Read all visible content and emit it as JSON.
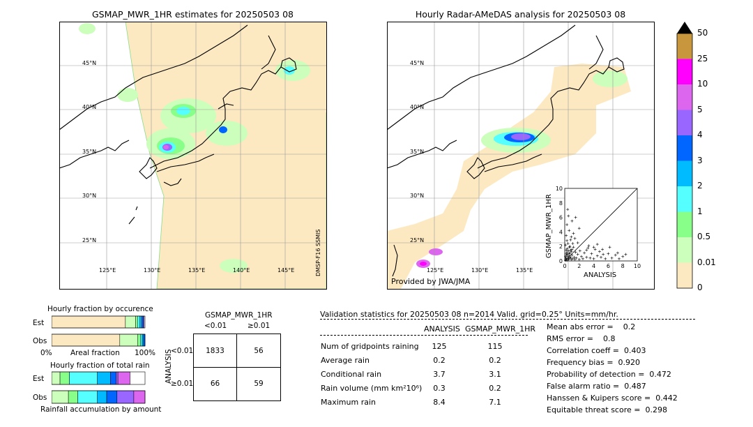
{
  "map_left": {
    "title": "GSMAP_MWR_1HR estimates for 20250503 08",
    "lat_labels": [
      "45°N",
      "40°N",
      "35°N",
      "30°N",
      "25°N"
    ],
    "lon_labels": [
      "125°E",
      "130°E",
      "135°E",
      "140°E",
      "145°E"
    ],
    "side_note": "DMSP-F16 SSMIS"
  },
  "map_right": {
    "title": "Hourly Radar-AMeDAS analysis for 20250503 08",
    "lat_labels": [
      "45°N",
      "40°N",
      "35°N",
      "30°N",
      "25°N"
    ],
    "lon_labels": [
      "125°E",
      "130°E",
      "135°E"
    ],
    "credit": "Provided by JWA/JMA"
  },
  "colorbar": {
    "labels": [
      "50",
      "25",
      "10",
      "5",
      "4",
      "3",
      "2",
      "1",
      "0.5",
      "0.01",
      "0"
    ],
    "colors": [
      "#c8963c",
      "#ff00ff",
      "#dd66ee",
      "#9966ff",
      "#0066ff",
      "#00bbff",
      "#55ffff",
      "#88ff88",
      "#ccffbb",
      "#fde9c1"
    ]
  },
  "chart_data": [
    {
      "type": "scatter",
      "xlabel": "ANALYSIS",
      "ylabel": "GSMAP_MWR_1HR",
      "xlim": [
        0,
        10
      ],
      "ylim": [
        0,
        10
      ],
      "ticks": [
        "0",
        "2",
        "4",
        "6",
        "8",
        "10"
      ],
      "points": [
        [
          0.1,
          0.1
        ],
        [
          0.2,
          0.3
        ],
        [
          0.3,
          0.1
        ],
        [
          0.4,
          0.6
        ],
        [
          0.5,
          0.2
        ],
        [
          0.6,
          1.0
        ],
        [
          0.7,
          0.4
        ],
        [
          0.8,
          1.5
        ],
        [
          0.9,
          0.2
        ],
        [
          1.0,
          0.8
        ],
        [
          1.1,
          0.3
        ],
        [
          1.2,
          1.9
        ],
        [
          1.3,
          0.5
        ],
        [
          1.4,
          0.2
        ],
        [
          1.5,
          1.2
        ],
        [
          1.6,
          0.4
        ],
        [
          1.8,
          0.9
        ],
        [
          2.0,
          0.2
        ],
        [
          2.1,
          1.4
        ],
        [
          2.3,
          0.6
        ],
        [
          2.5,
          0.3
        ],
        [
          2.7,
          1.1
        ],
        [
          3.0,
          0.5
        ],
        [
          3.2,
          1.8
        ],
        [
          3.5,
          0.4
        ],
        [
          3.7,
          1.0
        ],
        [
          4.0,
          0.3
        ],
        [
          4.2,
          1.6
        ],
        [
          4.5,
          0.7
        ],
        [
          4.8,
          1.3
        ],
        [
          5.0,
          0.5
        ],
        [
          5.3,
          0.9
        ],
        [
          5.6,
          0.3
        ],
        [
          6.0,
          1.0
        ],
        [
          6.5,
          0.4
        ],
        [
          7.0,
          0.8
        ],
        [
          7.5,
          0.3
        ],
        [
          8.4,
          0.9
        ],
        [
          0.2,
          3.5
        ],
        [
          0.3,
          5.0
        ],
        [
          0.5,
          6.2
        ],
        [
          0.4,
          7.1
        ],
        [
          0.6,
          4.2
        ],
        [
          0.8,
          2.9
        ],
        [
          1.0,
          5.5
        ],
        [
          1.2,
          3.8
        ],
        [
          1.5,
          6.0
        ],
        [
          1.8,
          2.5
        ],
        [
          2.0,
          4.5
        ],
        [
          0.1,
          2.2
        ],
        [
          0.2,
          1.5
        ],
        [
          0.3,
          2.8
        ],
        [
          0.7,
          2.0
        ],
        [
          0.9,
          3.3
        ],
        [
          1.1,
          2.4
        ],
        [
          1.4,
          3.1
        ],
        [
          3.0,
          1.5
        ],
        [
          3.3,
          2.1
        ],
        [
          4.0,
          1.9
        ],
        [
          4.5,
          2.3
        ],
        [
          5.2,
          1.6
        ],
        [
          6.2,
          1.9
        ],
        [
          7.3,
          1.1
        ],
        [
          8.0,
          0.6
        ],
        [
          0.1,
          0.6
        ],
        [
          0.2,
          1.0
        ],
        [
          0.3,
          1.2
        ],
        [
          0.4,
          0.9
        ],
        [
          0.5,
          1.4
        ],
        [
          0.6,
          0.7
        ],
        [
          0.7,
          1.1
        ],
        [
          0.8,
          0.5
        ],
        [
          0.9,
          1.3
        ],
        [
          1.0,
          1.6
        ],
        [
          0.15,
          0.4
        ],
        [
          0.25,
          0.8
        ],
        [
          0.35,
          1.7
        ],
        [
          0.45,
          2.4
        ],
        [
          0.55,
          0.3
        ],
        [
          0.65,
          1.9
        ]
      ]
    },
    {
      "type": "bar",
      "title": "Hourly fraction by occurence",
      "categories": [
        "Est",
        "Obs"
      ],
      "xlabel": "Areal fraction",
      "x_ticks": [
        "0%",
        "100%"
      ],
      "segments": [
        [
          {
            "value": 0.79,
            "color": "#fde9c1"
          },
          {
            "value": 0.11,
            "color": "#ccffbb"
          },
          {
            "value": 0.02,
            "color": "#88ff88"
          },
          {
            "value": 0.025,
            "color": "#55ffff"
          },
          {
            "value": 0.02,
            "color": "#00bbff"
          },
          {
            "value": 0.015,
            "color": "#0066ff"
          },
          {
            "value": 0.01,
            "color": "#9966ff"
          }
        ],
        [
          {
            "value": 0.73,
            "color": "#fde9c1"
          },
          {
            "value": 0.19,
            "color": "#ccffbb"
          },
          {
            "value": 0.03,
            "color": "#88ff88"
          },
          {
            "value": 0.02,
            "color": "#55ffff"
          },
          {
            "value": 0.015,
            "color": "#00bbff"
          },
          {
            "value": 0.015,
            "color": "#0066ff"
          }
        ]
      ]
    },
    {
      "type": "bar",
      "title": "Hourly fraction of total rain",
      "categories": [
        "Est",
        "Obs"
      ],
      "xlabel": "Rainfall accumulation by amount",
      "segments": [
        [
          {
            "value": 0.09,
            "color": "#ccffbb"
          },
          {
            "value": 0.1,
            "color": "#88ff88"
          },
          {
            "value": 0.3,
            "color": "#55ffff"
          },
          {
            "value": 0.14,
            "color": "#00bbff"
          },
          {
            "value": 0.06,
            "color": "#0066ff"
          },
          {
            "value": 0.02,
            "color": "#9966ff"
          },
          {
            "value": 0.13,
            "color": "#dd66ee"
          }
        ],
        [
          {
            "value": 0.18,
            "color": "#ccffbb"
          },
          {
            "value": 0.1,
            "color": "#88ff88"
          },
          {
            "value": 0.21,
            "color": "#55ffff"
          },
          {
            "value": 0.1,
            "color": "#00bbff"
          },
          {
            "value": 0.11,
            "color": "#0066ff"
          },
          {
            "value": 0.18,
            "color": "#9966ff"
          },
          {
            "value": 0.12,
            "color": "#dd66ee"
          }
        ]
      ]
    }
  ],
  "contingency": {
    "title": "GSMAP_MWR_1HR",
    "col_labels": [
      "<0.01",
      "≥0.01"
    ],
    "row_labels": [
      "<0.01",
      "≥0.01"
    ],
    "side_label": "ANALYSIS",
    "cells": [
      [
        "1833",
        "56"
      ],
      [
        "66",
        "59"
      ]
    ]
  },
  "validation": {
    "header": "Validation statistics for 20250503 08  n=2014 Valid. grid=0.25° Units=mm/hr.",
    "col_analysis": "ANALYSIS",
    "col_gsmap": "GSMAP_MWR_1HR",
    "rows": [
      {
        "label": "Num of gridpoints raining",
        "analysis": "125",
        "gsmap": "115"
      },
      {
        "label": "Average rain",
        "analysis": "0.2",
        "gsmap": "0.2"
      },
      {
        "label": "Conditional rain",
        "analysis": "3.7",
        "gsmap": "3.1"
      },
      {
        "label": "Rain volume (mm km²10⁶)",
        "analysis": "0.3",
        "gsmap": "0.2"
      },
      {
        "label": "Maximum rain",
        "analysis": "8.4",
        "gsmap": "7.1"
      }
    ],
    "scores": [
      "Mean abs error =    0.2",
      "RMS error =    0.8",
      "Correlation coeff =  0.403",
      "Frequency bias =  0.920",
      "Probability of detection =  0.472",
      "False alarm ratio =  0.487",
      "Hanssen & Kuipers score =  0.442",
      "Equitable threat score =  0.298"
    ]
  }
}
